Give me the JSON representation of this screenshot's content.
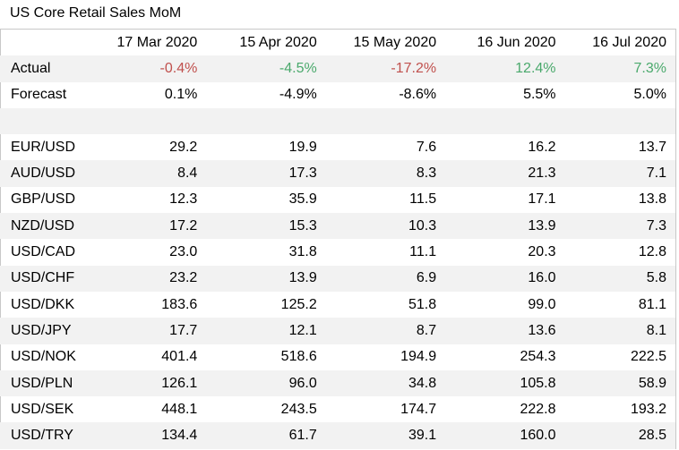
{
  "chart_data": {
    "type": "table",
    "title": "US Core Retail Sales MoM",
    "columns": [
      "17 Mar 2020",
      "15 Apr 2020",
      "15 May 2020",
      "16 Jun 2020",
      "16 Jul 2020"
    ],
    "actual": {
      "label": "Actual",
      "values": [
        "-0.4%",
        "-4.5%",
        "-17.2%",
        "12.4%",
        "7.3%"
      ],
      "signs": [
        "neg",
        "pos",
        "neg",
        "pos",
        "pos"
      ]
    },
    "forecast": {
      "label": "Forecast",
      "values": [
        "0.1%",
        "-4.9%",
        "-8.6%",
        "5.5%",
        "5.0%"
      ]
    },
    "rows": [
      {
        "pair": "EUR/USD",
        "values": [
          "29.2",
          "19.9",
          "7.6",
          "16.2",
          "13.7"
        ]
      },
      {
        "pair": "AUD/USD",
        "values": [
          "8.4",
          "17.3",
          "8.3",
          "21.3",
          "7.1"
        ]
      },
      {
        "pair": "GBP/USD",
        "values": [
          "12.3",
          "35.9",
          "11.5",
          "17.1",
          "13.8"
        ]
      },
      {
        "pair": "NZD/USD",
        "values": [
          "17.2",
          "15.3",
          "10.3",
          "13.9",
          "7.3"
        ]
      },
      {
        "pair": "USD/CAD",
        "values": [
          "23.0",
          "31.8",
          "11.1",
          "20.3",
          "12.8"
        ]
      },
      {
        "pair": "USD/CHF",
        "values": [
          "23.2",
          "13.9",
          "6.9",
          "16.0",
          "5.8"
        ]
      },
      {
        "pair": "USD/DKK",
        "values": [
          "183.6",
          "125.2",
          "51.8",
          "99.0",
          "81.1"
        ]
      },
      {
        "pair": "USD/JPY",
        "values": [
          "17.7",
          "12.1",
          "8.7",
          "13.6",
          "8.1"
        ]
      },
      {
        "pair": "USD/NOK",
        "values": [
          "401.4",
          "518.6",
          "194.9",
          "254.3",
          "222.5"
        ]
      },
      {
        "pair": "USD/PLN",
        "values": [
          "126.1",
          "96.0",
          "34.8",
          "105.8",
          "58.9"
        ]
      },
      {
        "pair": "USD/SEK",
        "values": [
          "448.1",
          "243.5",
          "174.7",
          "222.8",
          "193.2"
        ]
      },
      {
        "pair": "USD/TRY",
        "values": [
          "134.4",
          "61.7",
          "39.1",
          "160.0",
          "28.5"
        ]
      }
    ],
    "colors": {
      "negative": "#c0504d",
      "positive": "#4aa96c",
      "shade": "#f2f2f2"
    }
  }
}
